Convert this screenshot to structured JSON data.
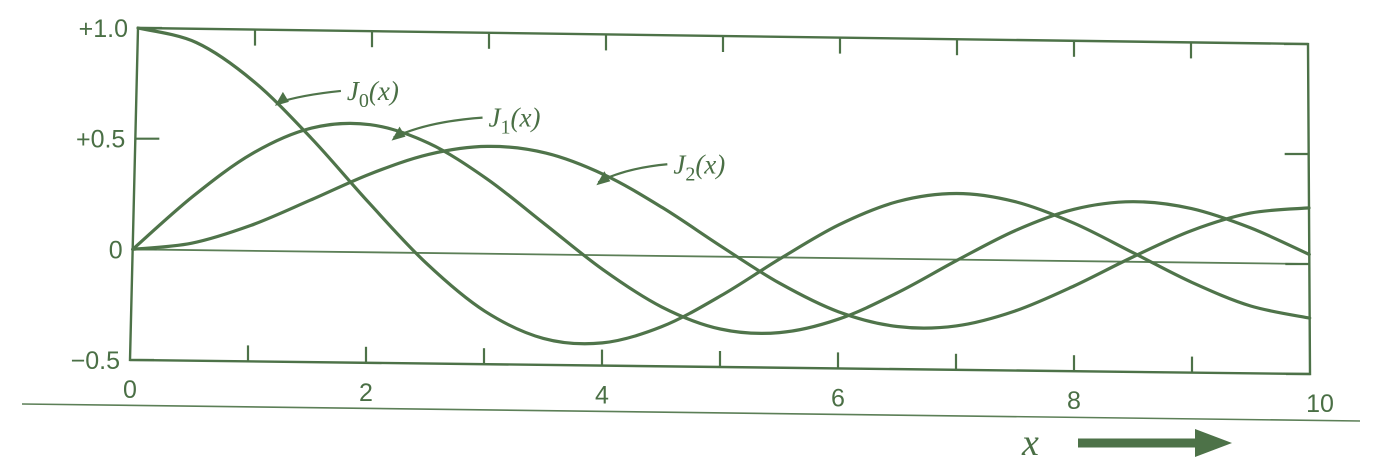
{
  "chart_data": {
    "type": "line",
    "xlabel": "x",
    "ylabel": "",
    "xlim": [
      0,
      10
    ],
    "ylim": [
      -0.5,
      1.0
    ],
    "x_ticks": [
      {
        "value": 0,
        "label": "0"
      },
      {
        "value": 2,
        "label": "2"
      },
      {
        "value": 4,
        "label": "4"
      },
      {
        "value": 6,
        "label": "6"
      },
      {
        "value": 8,
        "label": "8"
      },
      {
        "value": 10,
        "label": "10"
      }
    ],
    "y_ticks": [
      {
        "value": 1.0,
        "label": "+1.0"
      },
      {
        "value": 0.5,
        "label": "+0.5"
      },
      {
        "value": 0,
        "label": "0"
      },
      {
        "value": -0.5,
        "label": "−0.5"
      }
    ],
    "grid": false,
    "x": [
      0,
      0.5,
      1,
      1.5,
      2,
      2.5,
      3,
      3.5,
      4,
      4.5,
      5,
      5.5,
      6,
      6.5,
      7,
      7.5,
      8,
      8.5,
      9,
      9.5,
      10
    ],
    "series": [
      {
        "name": "J₀(x)",
        "label_main": "J",
        "label_sub": "0",
        "label_arg": "(x)",
        "label_anchor": [
          1.2,
          0.67
        ],
        "values": [
          1.0,
          0.938,
          0.765,
          0.512,
          0.224,
          -0.048,
          -0.26,
          -0.38,
          -0.397,
          -0.321,
          -0.178,
          -0.007,
          0.151,
          0.26,
          0.3,
          0.266,
          0.172,
          0.042,
          -0.09,
          -0.194,
          -0.246
        ]
      },
      {
        "name": "J₁(x)",
        "label_main": "J",
        "label_sub": "1",
        "label_arg": "(x)",
        "label_anchor": [
          2.2,
          0.52
        ],
        "values": [
          0.0,
          0.242,
          0.44,
          0.558,
          0.577,
          0.497,
          0.339,
          0.137,
          -0.066,
          -0.231,
          -0.328,
          -0.341,
          -0.277,
          -0.154,
          -0.005,
          0.135,
          0.235,
          0.273,
          0.245,
          0.161,
          0.043
        ]
      },
      {
        "name": "J₂(x)",
        "label_main": "J",
        "label_sub": "2",
        "label_arg": "(x)",
        "label_anchor": [
          3.95,
          0.33
        ],
        "values": [
          0.0,
          0.031,
          0.115,
          0.232,
          0.353,
          0.446,
          0.486,
          0.459,
          0.364,
          0.218,
          0.047,
          -0.117,
          -0.243,
          -0.307,
          -0.301,
          -0.23,
          -0.113,
          0.022,
          0.145,
          0.228,
          0.255
        ]
      }
    ]
  }
}
